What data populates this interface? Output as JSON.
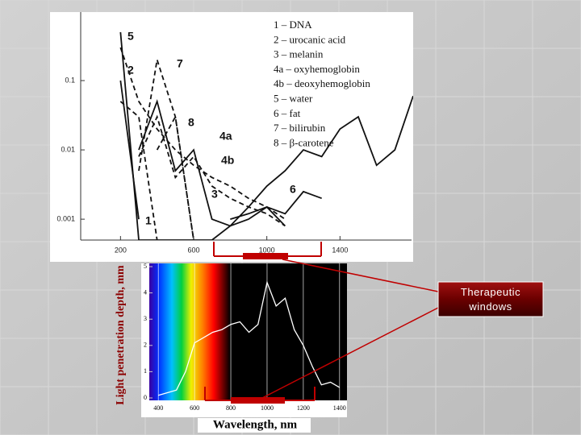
{
  "chart_data": [
    {
      "type": "line",
      "log_y": true,
      "x": [
        200,
        300,
        400,
        500,
        600,
        700,
        800,
        900,
        1000,
        1100,
        1200,
        1300,
        1400,
        1500,
        1600,
        1700,
        1800
      ],
      "xlim": [
        0,
        1800
      ],
      "xticks": [
        200,
        600,
        1000,
        1400
      ],
      "ylim": [
        0.0005,
        1
      ],
      "yticks": [
        0.1,
        0.01,
        0.001
      ],
      "series": [
        {
          "name": "1 – DNA",
          "label": "1",
          "color": "#111111",
          "dashed": false,
          "values": [
            0.1,
            0.001,
            null,
            null,
            null,
            null,
            null,
            null,
            null,
            null,
            null,
            null,
            null,
            null,
            null,
            null,
            null
          ]
        },
        {
          "name": "2 – urocanic acid",
          "label": "2",
          "color": "#111111",
          "dashed": true,
          "values": [
            0.05,
            0.03,
            0.0005,
            null,
            null,
            null,
            null,
            null,
            null,
            null,
            null,
            null,
            null,
            null,
            null,
            null,
            null
          ]
        },
        {
          "name": "3 – melanin",
          "label": "3",
          "color": "#111111",
          "dashed": true,
          "values": [
            0.3,
            0.05,
            0.02,
            0.01,
            0.006,
            0.004,
            0.003,
            0.002,
            0.0015,
            0.001,
            null,
            null,
            null,
            null,
            null,
            null,
            null
          ]
        },
        {
          "name": "4a – oxyhemoglobin",
          "label": "4a",
          "color": "#111111",
          "dashed": false,
          "values": [
            null,
            0.01,
            0.05,
            0.005,
            0.01,
            0.001,
            0.0008,
            0.001,
            0.0015,
            0.0008,
            null,
            null,
            null,
            null,
            null,
            null,
            null
          ]
        },
        {
          "name": "4b – deoxyhemoglobin",
          "label": "4b",
          "color": "#111111",
          "dashed": true,
          "values": [
            null,
            0.008,
            0.03,
            0.004,
            0.008,
            0.003,
            0.002,
            0.0015,
            0.0012,
            0.0008,
            null,
            null,
            null,
            null,
            null,
            null,
            null
          ]
        },
        {
          "name": "5 – water",
          "label": "5",
          "color": "#111111",
          "dashed": false,
          "values": [
            0.5,
            0.0005,
            0.0005,
            0.0005,
            0.0005,
            0.0005,
            0.0008,
            0.0015,
            0.003,
            0.005,
            0.01,
            0.008,
            0.02,
            0.03,
            0.006,
            0.01,
            0.06
          ]
        },
        {
          "name": "6 – fat",
          "label": "6",
          "color": "#111111",
          "dashed": false,
          "values": [
            null,
            null,
            null,
            null,
            null,
            null,
            0.001,
            0.0012,
            0.0015,
            0.0012,
            0.0025,
            0.002,
            null,
            null,
            null,
            null,
            null
          ]
        },
        {
          "name": "7 – bilirubin",
          "label": "7",
          "color": "#111111",
          "dashed": true,
          "values": [
            null,
            0.005,
            0.2,
            0.03,
            0.0005,
            null,
            null,
            null,
            null,
            null,
            null,
            null,
            null,
            null,
            null,
            null,
            null
          ]
        },
        {
          "name": "8 – β-carotene",
          "label": "8",
          "color": "#111111",
          "dashed": true,
          "values": [
            null,
            null,
            0.01,
            0.03,
            0.0005,
            null,
            null,
            null,
            null,
            null,
            null,
            null,
            null,
            null,
            null,
            null,
            null
          ]
        }
      ]
    },
    {
      "type": "line",
      "x": [
        400,
        450,
        500,
        550,
        600,
        650,
        700,
        750,
        800,
        850,
        900,
        950,
        1000,
        1050,
        1100,
        1150,
        1200,
        1250,
        1300,
        1350,
        1400
      ],
      "values": [
        0.1,
        0.2,
        0.3,
        1.0,
        2.1,
        2.3,
        2.5,
        2.6,
        2.8,
        2.9,
        2.5,
        2.8,
        4.4,
        3.5,
        3.8,
        2.6,
        2.0,
        1.2,
        0.5,
        0.6,
        0.4
      ],
      "color": "#ffffff",
      "xlim": [
        350,
        1450
      ],
      "xticks": [
        400,
        600,
        800,
        1000,
        1200,
        1400
      ],
      "ylim": [
        0,
        5
      ],
      "yticks": [
        0,
        1,
        2,
        3,
        4,
        5
      ],
      "grid": true,
      "ylabel": "Light penetration depth, mm",
      "xlabel": "Wavelength, nm"
    }
  ],
  "callout": "Therapeutic windows"
}
